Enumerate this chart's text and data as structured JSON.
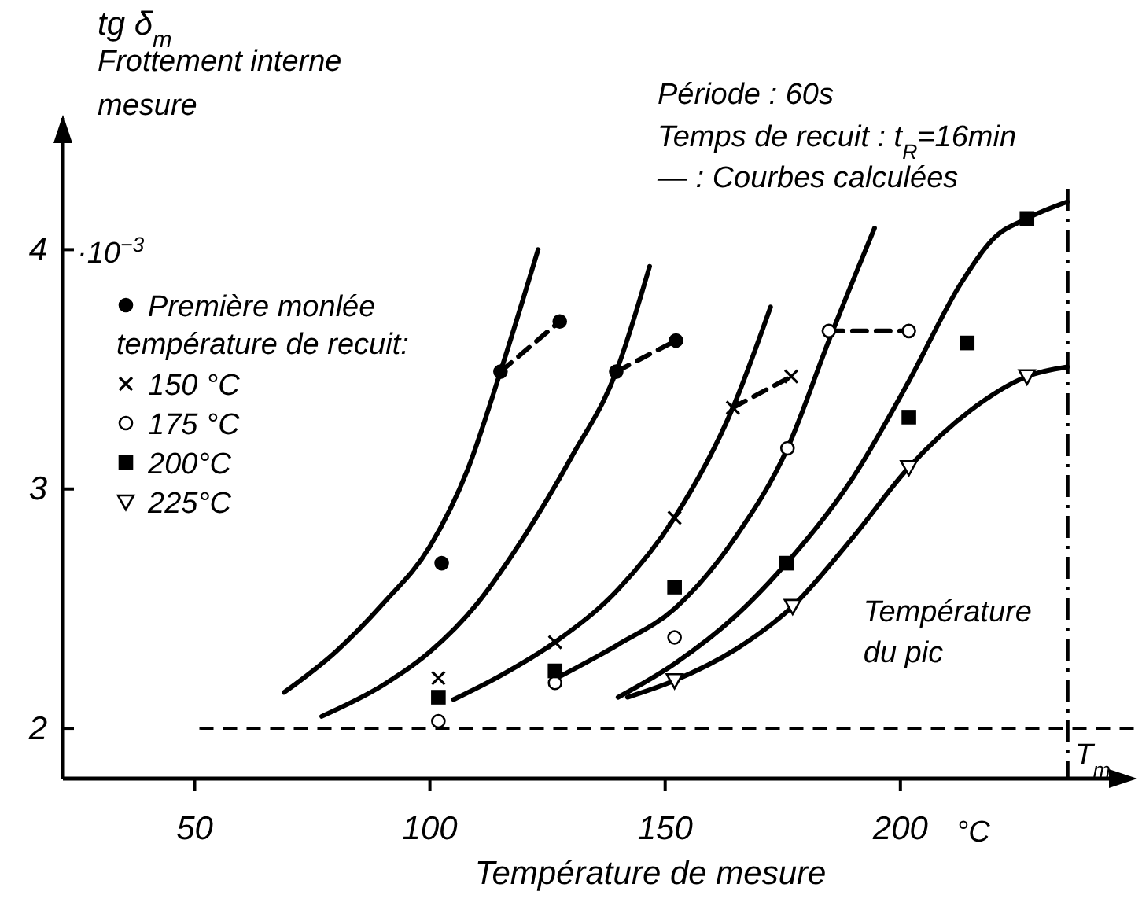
{
  "chart_data": {
    "type": "line",
    "xlabel": "Température de mesure",
    "ylabel": "tg δ$_{m}$",
    "legend_title": "température de recuit:",
    "legend": "top left",
    "xlim": [
      22,
      245
    ],
    "xticks": [
      50,
      100,
      150,
      200
    ],
    "ylim": [
      1.79,
      4.55
    ],
    "yticks": [
      2,
      3,
      4
    ],
    "grid": false,
    "series": [
      {
        "color": "#000000",
        "marker": "none",
        "line_style": "solid",
        "x": [
          69,
          80,
          90,
          100,
          108,
          115,
          123
        ],
        "values": [
          2.15,
          2.32,
          2.52,
          2.76,
          3.08,
          3.49,
          4.0
        ]
      },
      {
        "color": "#000000",
        "marker": "none",
        "line_style": "solid",
        "x": [
          77,
          90,
          100,
          110,
          120,
          130,
          139.6,
          146.7
        ],
        "values": [
          2.05,
          2.18,
          2.32,
          2.52,
          2.8,
          3.13,
          3.49,
          3.93
        ]
      },
      {
        "color": "#000000",
        "marker": "none",
        "line_style": "solid",
        "x": [
          105,
          115,
          126.6,
          140,
          152,
          164.4,
          172.4
        ],
        "values": [
          2.12,
          2.22,
          2.36,
          2.58,
          2.88,
          3.34,
          3.76
        ]
      },
      {
        "color": "#000000",
        "marker": "none",
        "line_style": "solid",
        "x": [
          126,
          140,
          152,
          165,
          176,
          184.8,
          194.5
        ],
        "values": [
          2.2,
          2.35,
          2.5,
          2.8,
          3.17,
          3.62,
          4.09
        ]
      },
      {
        "color": "#000000",
        "marker": "none",
        "line_style": "solid",
        "x": [
          140,
          152,
          165,
          175.8,
          190,
          201.8,
          212.9,
          220,
          226.9,
          235.5
        ],
        "values": [
          2.13,
          2.27,
          2.47,
          2.69,
          3.05,
          3.45,
          3.86,
          4.05,
          4.13,
          4.2
        ]
      },
      {
        "color": "#000000",
        "marker": "none",
        "line_style": "solid",
        "x": [
          142,
          152,
          165,
          177.1,
          190,
          201.8,
          215,
          226.9,
          235.5
        ],
        "values": [
          2.13,
          2.2,
          2.33,
          2.51,
          2.8,
          3.09,
          3.33,
          3.47,
          3.51
        ]
      },
      {
        "color": "#000000",
        "marker": "none",
        "line_style": "dashed",
        "x": [
          115,
          127.6
        ],
        "values": [
          3.49,
          3.7
        ]
      },
      {
        "color": "#000000",
        "marker": "none",
        "line_style": "dashed",
        "x": [
          139.6,
          152.3
        ],
        "values": [
          3.49,
          3.62
        ]
      },
      {
        "color": "#000000",
        "marker": "none",
        "line_style": "dashed",
        "x": [
          164.4,
          176.8
        ],
        "values": [
          3.34,
          3.47
        ]
      },
      {
        "color": "#000000",
        "marker": "none",
        "line_style": "dashed",
        "x": [
          184.8,
          201.8
        ],
        "values": [
          3.66,
          3.66
        ]
      },
      {
        "type": "scatter",
        "name": "Première monlée",
        "color": "#000000",
        "marker": "circle",
        "x": [
          102.5,
          115,
          127.6,
          139.6,
          152.3
        ],
        "values": [
          2.69,
          3.49,
          3.7,
          3.49,
          3.62
        ]
      },
      {
        "type": "scatter",
        "name": "150 °C",
        "color": "#000000",
        "marker": "cross",
        "x": [
          101.8,
          126.6,
          152,
          164.4,
          176.8
        ],
        "values": [
          2.21,
          2.36,
          2.88,
          3.34,
          3.47
        ]
      },
      {
        "type": "scatter",
        "name": "175 °C",
        "color": "#ffffff",
        "marker": "circle",
        "x": [
          101.8,
          126.6,
          152,
          176,
          184.8,
          201.8
        ],
        "values": [
          2.03,
          2.19,
          2.38,
          3.17,
          3.66,
          3.66
        ]
      },
      {
        "type": "scatter",
        "name": "200°C",
        "color": "#000000",
        "marker": "square",
        "x": [
          101.8,
          126.6,
          152,
          175.8,
          201.8,
          214.2,
          226.9
        ],
        "values": [
          2.13,
          2.24,
          2.59,
          2.69,
          3.3,
          3.61,
          4.13
        ]
      },
      {
        "type": "scatter",
        "name": "225°C",
        "color": "#ffffff",
        "marker": "triangle",
        "x": [
          152,
          177.1,
          201.8,
          226.9
        ],
        "values": [
          2.2,
          2.51,
          3.09,
          3.47
        ]
      }
    ],
    "ref_lines": [
      {
        "axis": "y",
        "value": 2,
        "line_style": "dashed",
        "color": "#000000"
      },
      {
        "axis": "x",
        "value": 235.6,
        "line_style": "dashed",
        "color": "#000000",
        "label": "Température du pic"
      }
    ],
    "annotations": [
      "Frottement interne mesure",
      "·10$^{−3}$",
      "Période : 60s",
      "Temps de recuit : t$_{R}$=16min",
      "— : Courbes calculées",
      "°C",
      "T$_{m}$"
    ]
  }
}
